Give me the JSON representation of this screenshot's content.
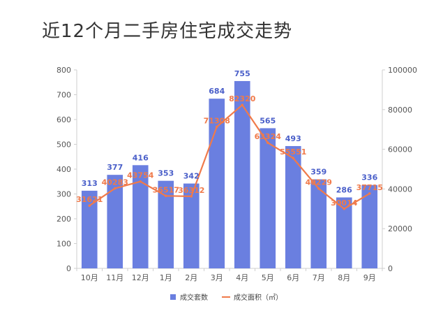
{
  "chart_data": {
    "type": "bar",
    "title": "近12个月二手房住宅成交走势",
    "categories": [
      "10月",
      "11月",
      "12月",
      "1月",
      "2月",
      "3月",
      "4月",
      "5月",
      "6月",
      "7月",
      "8月",
      "9月"
    ],
    "series": [
      {
        "name": "成交套数",
        "type": "bar",
        "axis": "left",
        "color": "#6a7fe0",
        "values": [
          313,
          377,
          416,
          353,
          342,
          684,
          755,
          565,
          493,
          359,
          286,
          336
        ]
      },
      {
        "name": "成交面积（㎡）",
        "type": "line",
        "axis": "right",
        "color": "#f07a4a",
        "values": [
          31621,
          40283,
          43754,
          36517,
          36312,
          71308,
          82320,
          63324,
          55551,
          40229,
          30014,
          37715
        ]
      }
    ],
    "y_left": {
      "ylim": [
        0,
        800
      ],
      "ticks": [
        0,
        100,
        200,
        300,
        400,
        500,
        600,
        700,
        800
      ]
    },
    "y_right": {
      "ylim": [
        0,
        100000
      ],
      "ticks": [
        0,
        20000,
        40000,
        60000,
        80000,
        100000
      ]
    },
    "grid": false,
    "legend": "bottom"
  }
}
